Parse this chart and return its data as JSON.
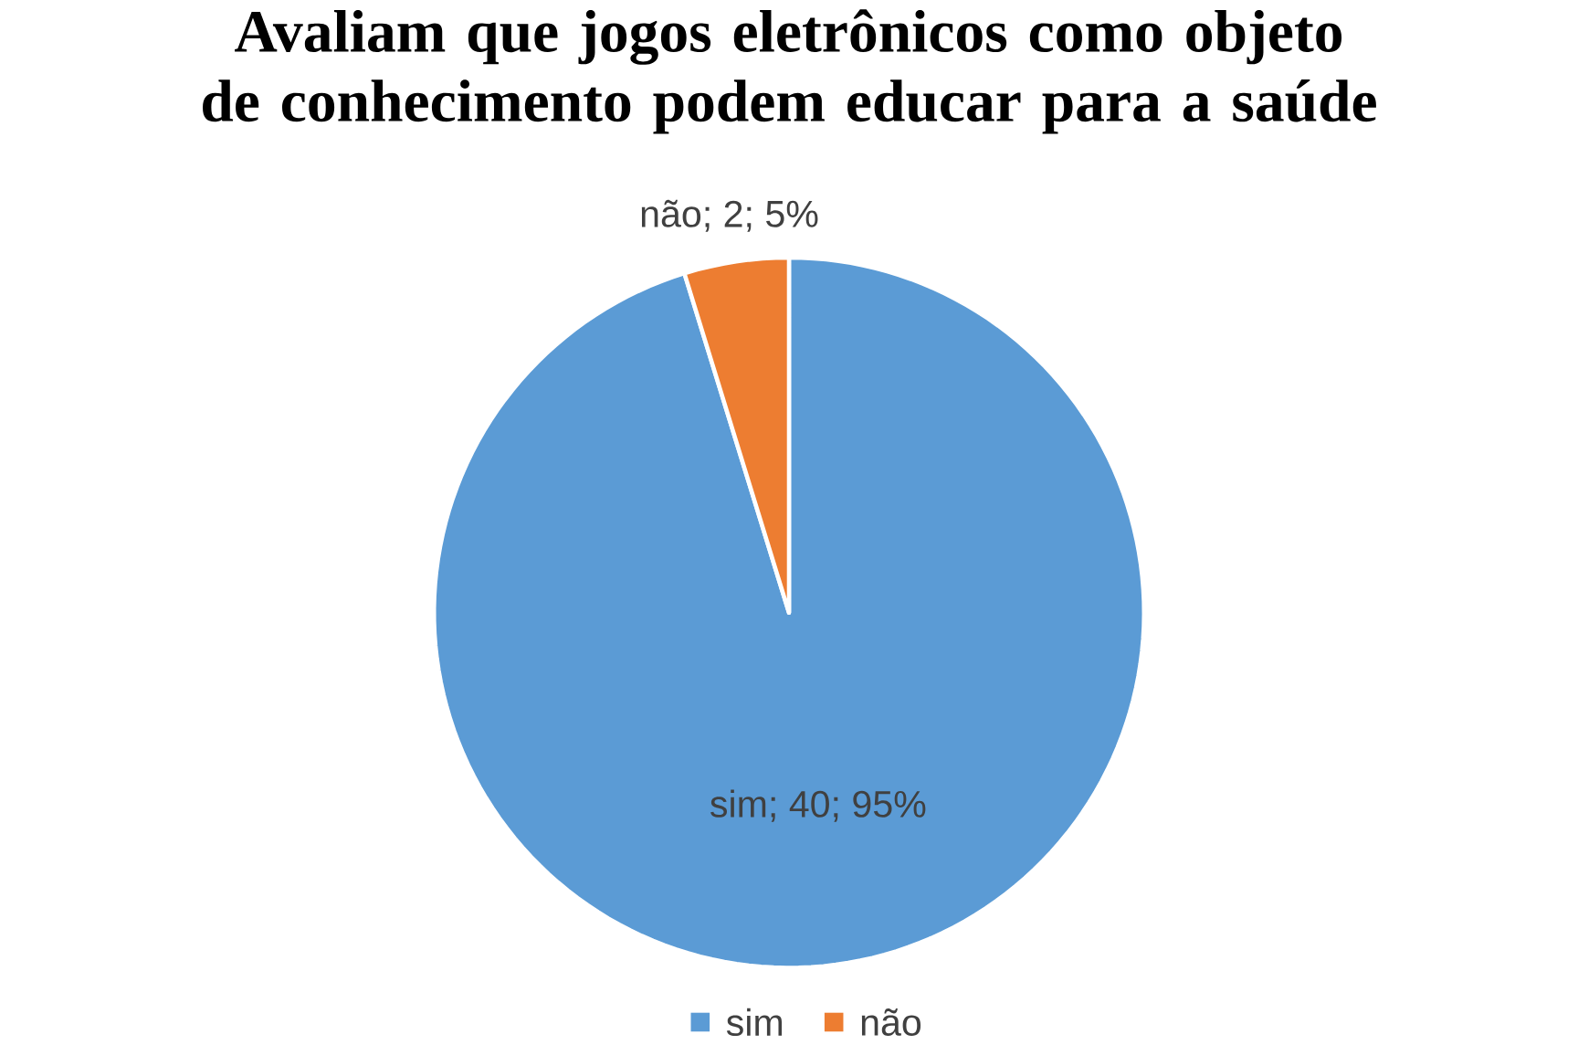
{
  "chart_data": {
    "type": "pie",
    "title": "Avaliam que jogos eletrônicos como objeto de conhecimento podem educar para a saúde",
    "categories": [
      "sim",
      "não"
    ],
    "values": [
      40,
      2
    ],
    "colors": [
      "#5b9bd5",
      "#ed7d31"
    ],
    "value_labels": [
      "sim; 40; 95%",
      "não; 2; 5%"
    ],
    "legend": "bottom"
  }
}
